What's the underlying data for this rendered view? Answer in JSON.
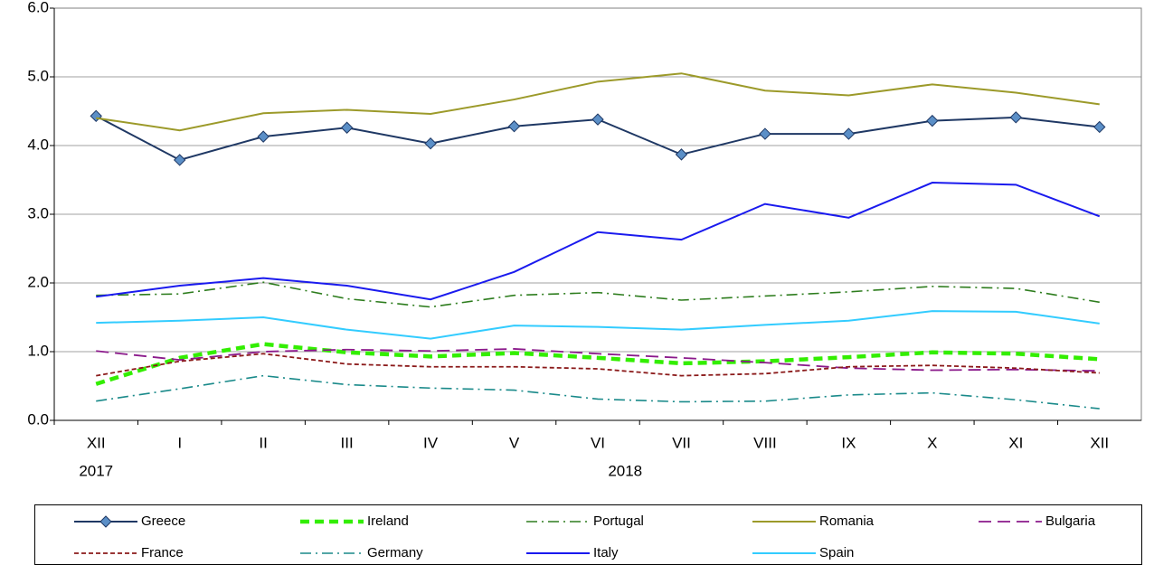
{
  "chart_data": {
    "type": "line",
    "categories": [
      "XII",
      "I",
      "II",
      "III",
      "IV",
      "V",
      "VI",
      "VII",
      "VIII",
      "IX",
      "X",
      "XI",
      "XII"
    ],
    "category_groups": [
      {
        "label": "2017",
        "categories": 1
      },
      {
        "label": "2018",
        "categories": 12
      }
    ],
    "ylim": [
      0,
      6
    ],
    "yticks": [
      {
        "value": 0,
        "label": "0.0"
      },
      {
        "value": 1,
        "label": "1.0"
      },
      {
        "value": 2,
        "label": "2.0"
      },
      {
        "value": 3,
        "label": "3.0"
      },
      {
        "value": 4,
        "label": "4.0"
      },
      {
        "value": 5,
        "label": "5.0"
      },
      {
        "value": 6,
        "label": "6.0"
      }
    ],
    "grid": true,
    "legend": "bottom",
    "series": [
      {
        "name": "Greece",
        "color": "#1f3864",
        "style": "solid",
        "marker": "diamond",
        "marker_color": "#5b8fc7",
        "values": [
          4.43,
          3.79,
          4.13,
          4.26,
          4.03,
          4.28,
          4.38,
          3.87,
          4.17,
          4.17,
          4.36,
          4.41,
          4.27
        ]
      },
      {
        "name": "Ireland",
        "color": "#33ee00",
        "style": "bold-dashed",
        "values": [
          0.53,
          0.91,
          1.11,
          0.99,
          0.93,
          0.98,
          0.91,
          0.83,
          0.86,
          0.92,
          0.99,
          0.97,
          0.89
        ]
      },
      {
        "name": "Portugal",
        "color": "#2e7d1e",
        "style": "dashdot",
        "values": [
          1.82,
          1.84,
          2.01,
          1.77,
          1.65,
          1.82,
          1.86,
          1.75,
          1.81,
          1.87,
          1.95,
          1.92,
          1.72
        ]
      },
      {
        "name": "Romania",
        "color": "#9c9a2a",
        "style": "solid",
        "values": [
          4.4,
          4.22,
          4.47,
          4.52,
          4.46,
          4.67,
          4.93,
          5.05,
          4.8,
          4.73,
          4.89,
          4.77,
          4.6
        ]
      },
      {
        "name": "Bulgaria",
        "color": "#8b1a8b",
        "style": "long-dash",
        "values": [
          1.01,
          0.88,
          1.0,
          1.03,
          1.01,
          1.04,
          0.97,
          0.91,
          0.84,
          0.76,
          0.73,
          0.74,
          0.72
        ]
      },
      {
        "name": "France",
        "color": "#8b1a1a",
        "style": "short-dash",
        "values": [
          0.65,
          0.86,
          0.97,
          0.82,
          0.78,
          0.78,
          0.75,
          0.65,
          0.68,
          0.78,
          0.8,
          0.76,
          0.69
        ]
      },
      {
        "name": "Germany",
        "color": "#1a8a8a",
        "style": "dashdot",
        "values": [
          0.28,
          0.46,
          0.65,
          0.52,
          0.47,
          0.44,
          0.31,
          0.27,
          0.28,
          0.37,
          0.4,
          0.3,
          0.17
        ]
      },
      {
        "name": "Italy",
        "color": "#1a1aee",
        "style": "solid",
        "values": [
          1.8,
          1.96,
          2.07,
          1.96,
          1.76,
          2.16,
          2.74,
          2.63,
          3.15,
          2.95,
          3.46,
          3.43,
          2.97
        ]
      },
      {
        "name": "Spain",
        "color": "#33ccff",
        "style": "solid",
        "values": [
          1.42,
          1.45,
          1.5,
          1.32,
          1.19,
          1.38,
          1.36,
          1.32,
          1.39,
          1.45,
          1.59,
          1.58,
          1.41
        ]
      }
    ]
  }
}
